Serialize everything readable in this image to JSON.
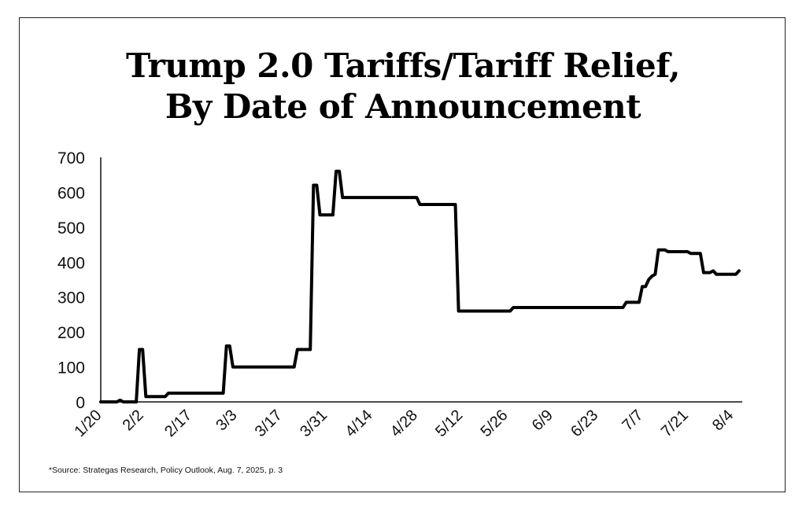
{
  "title_line1": "Trump 2.0 Tariffs/Tariff Relief,",
  "title_line2": "By Date of Announcement",
  "source": "*Source: Strategas Research, Policy Outlook, Aug. 7, 2025, p. 3",
  "line_color": "#000000",
  "chart_data": {
    "type": "line",
    "title": "Trump 2.0 Tariffs/Tariff Relief, By Date of Announcement",
    "xlabel": "",
    "ylabel": "",
    "ylim": [
      0,
      700
    ],
    "xlim": [
      "2025-01-20",
      "2025-08-07"
    ],
    "grid": false,
    "yticks": [
      0,
      100,
      200,
      300,
      400,
      500,
      600,
      700
    ],
    "xticks": [
      {
        "label": "1/20",
        "date": "2025-01-20"
      },
      {
        "label": "2/2",
        "date": "2025-02-02"
      },
      {
        "label": "2/17",
        "date": "2025-02-17"
      },
      {
        "label": "3/3",
        "date": "2025-03-03"
      },
      {
        "label": "3/17",
        "date": "2025-03-17"
      },
      {
        "label": "3/31",
        "date": "2025-03-31"
      },
      {
        "label": "4/14",
        "date": "2025-04-14"
      },
      {
        "label": "4/28",
        "date": "2025-04-28"
      },
      {
        "label": "5/12",
        "date": "2025-05-12"
      },
      {
        "label": "5/26",
        "date": "2025-05-26"
      },
      {
        "label": "6/9",
        "date": "2025-06-09"
      },
      {
        "label": "6/23",
        "date": "2025-06-23"
      },
      {
        "label": "7/7",
        "date": "2025-07-07"
      },
      {
        "label": "7/21",
        "date": "2025-07-21"
      },
      {
        "label": "8/4",
        "date": "2025-08-04"
      }
    ],
    "series": [
      {
        "points": [
          [
            "2025-01-20",
            0
          ],
          [
            "2025-01-25",
            0
          ],
          [
            "2025-01-26",
            5
          ],
          [
            "2025-01-27",
            0
          ],
          [
            "2025-01-31",
            0
          ],
          [
            "2025-02-01",
            150
          ],
          [
            "2025-02-02",
            150
          ],
          [
            "2025-02-03",
            15
          ],
          [
            "2025-02-09",
            15
          ],
          [
            "2025-02-10",
            25
          ],
          [
            "2025-02-27",
            25
          ],
          [
            "2025-02-28",
            160
          ],
          [
            "2025-03-01",
            160
          ],
          [
            "2025-03-02",
            100
          ],
          [
            "2025-03-21",
            100
          ],
          [
            "2025-03-22",
            150
          ],
          [
            "2025-03-26",
            150
          ],
          [
            "2025-03-27",
            620
          ],
          [
            "2025-03-28",
            620
          ],
          [
            "2025-03-29",
            535
          ],
          [
            "2025-04-02",
            535
          ],
          [
            "2025-04-03",
            660
          ],
          [
            "2025-04-04",
            660
          ],
          [
            "2025-04-05",
            585
          ],
          [
            "2025-04-28",
            585
          ],
          [
            "2025-04-29",
            565
          ],
          [
            "2025-05-10",
            565
          ],
          [
            "2025-05-11",
            260
          ],
          [
            "2025-05-27",
            260
          ],
          [
            "2025-05-28",
            270
          ],
          [
            "2025-07-01",
            270
          ],
          [
            "2025-07-02",
            285
          ],
          [
            "2025-07-06",
            285
          ],
          [
            "2025-07-07",
            330
          ],
          [
            "2025-07-08",
            330
          ],
          [
            "2025-07-09",
            350
          ],
          [
            "2025-07-10",
            360
          ],
          [
            "2025-07-11",
            365
          ],
          [
            "2025-07-12",
            435
          ],
          [
            "2025-07-14",
            435
          ],
          [
            "2025-07-15",
            430
          ],
          [
            "2025-07-21",
            430
          ],
          [
            "2025-07-22",
            425
          ],
          [
            "2025-07-25",
            425
          ],
          [
            "2025-07-26",
            370
          ],
          [
            "2025-07-28",
            370
          ],
          [
            "2025-07-29",
            375
          ],
          [
            "2025-07-30",
            365
          ],
          [
            "2025-08-05",
            365
          ],
          [
            "2025-08-06",
            375
          ]
        ]
      }
    ]
  }
}
